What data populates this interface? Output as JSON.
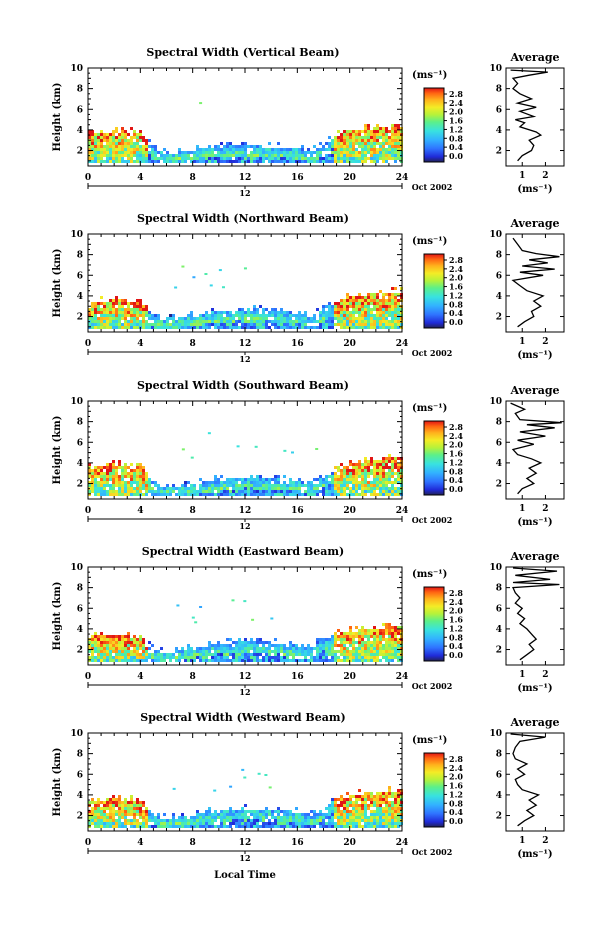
{
  "figure": {
    "time_axis_label": "Local Time",
    "height_axis_label": "Height (km)",
    "unit_label": "(ms⁻¹)",
    "date_label": "Oct 2002",
    "mid_marker_label": "12",
    "average_title": "Average"
  },
  "colorbar": {
    "ticks": [
      "0.0",
      "0.4",
      "0.8",
      "1.2",
      "1.6",
      "2.0",
      "2.4",
      "2.8"
    ],
    "colors": [
      "#222255",
      "#1f2ad8",
      "#2f73ff",
      "#32b2ff",
      "#38e2e0",
      "#5cf08a",
      "#b6f23a",
      "#f4ec26",
      "#ffb21c",
      "#ff6412",
      "#e11515"
    ]
  },
  "chart_data": [
    {
      "type": "heatmap",
      "title": "Spectral Width (Vertical Beam)",
      "xlim": [
        0,
        24
      ],
      "ylim": [
        0.5,
        10
      ],
      "x_ticks": [
        0,
        4,
        8,
        12,
        16,
        20,
        24
      ],
      "y_ticks": [
        2,
        4,
        6,
        8,
        10
      ],
      "value_range": [
        0.0,
        3.0
      ],
      "top_height_km": [
        [
          0,
          3.8
        ],
        [
          2,
          4.0
        ],
        [
          4,
          3.9
        ],
        [
          5,
          2.3
        ],
        [
          6,
          1.8
        ],
        [
          8,
          2.2
        ],
        [
          10,
          2.5
        ],
        [
          12,
          2.6
        ],
        [
          14,
          2.5
        ],
        [
          16,
          2.3
        ],
        [
          17,
          2.0
        ],
        [
          18,
          2.6
        ],
        [
          19,
          3.6
        ],
        [
          20,
          4.1
        ],
        [
          22,
          4.3
        ],
        [
          24,
          4.5
        ]
      ],
      "average": {
        "xlim": [
          0.3,
          2.8
        ],
        "x_ticks": [
          1,
          2
        ],
        "y_ticks": [
          2,
          4,
          6,
          8,
          10
        ],
        "profile": [
          [
            0.8,
            1.0
          ],
          [
            1.0,
            1.5
          ],
          [
            1.4,
            2.0
          ],
          [
            1.5,
            2.5
          ],
          [
            1.3,
            3.0
          ],
          [
            1.8,
            3.5
          ],
          [
            1.6,
            3.8
          ],
          [
            0.9,
            4.3
          ],
          [
            1.1,
            4.7
          ],
          [
            0.7,
            5.0
          ],
          [
            1.5,
            5.3
          ],
          [
            0.9,
            5.8
          ],
          [
            1.6,
            6.2
          ],
          [
            0.8,
            6.6
          ],
          [
            1.4,
            7.0
          ],
          [
            0.9,
            7.5
          ],
          [
            0.6,
            8.0
          ],
          [
            0.8,
            8.5
          ],
          [
            0.6,
            9.0
          ],
          [
            1.3,
            9.3
          ],
          [
            2.1,
            9.6
          ],
          [
            0.5,
            9.8
          ]
        ]
      }
    },
    {
      "type": "heatmap",
      "title": "Spectral Width (Northward Beam)",
      "xlim": [
        0,
        24
      ],
      "ylim": [
        0.5,
        10
      ],
      "x_ticks": [
        0,
        4,
        8,
        12,
        16,
        20,
        24
      ],
      "y_ticks": [
        2,
        4,
        6,
        8,
        10
      ],
      "value_range": [
        0.0,
        3.0
      ],
      "top_height_km": [
        [
          0,
          3.4
        ],
        [
          2,
          3.8
        ],
        [
          4,
          3.5
        ],
        [
          5,
          2.2
        ],
        [
          6,
          1.8
        ],
        [
          8,
          2.2
        ],
        [
          10,
          2.6
        ],
        [
          12,
          2.8
        ],
        [
          14,
          2.7
        ],
        [
          16,
          2.5
        ],
        [
          17,
          2.1
        ],
        [
          18,
          2.8
        ],
        [
          19,
          3.5
        ],
        [
          20,
          4.0
        ],
        [
          22,
          4.3
        ],
        [
          24,
          4.6
        ]
      ],
      "average": {
        "xlim": [
          0.3,
          2.8
        ],
        "x_ticks": [
          1,
          2
        ],
        "y_ticks": [
          2,
          4,
          6,
          8,
          10
        ],
        "profile": [
          [
            0.8,
            1.0
          ],
          [
            1.1,
            1.5
          ],
          [
            1.5,
            2.0
          ],
          [
            1.4,
            2.5
          ],
          [
            1.8,
            3.0
          ],
          [
            1.5,
            3.5
          ],
          [
            1.9,
            4.0
          ],
          [
            1.2,
            4.5
          ],
          [
            0.9,
            5.0
          ],
          [
            0.6,
            5.5
          ],
          [
            1.9,
            6.0
          ],
          [
            0.9,
            6.3
          ],
          [
            2.4,
            6.6
          ],
          [
            1.0,
            6.9
          ],
          [
            2.1,
            7.2
          ],
          [
            1.3,
            7.5
          ],
          [
            2.6,
            7.8
          ],
          [
            1.6,
            8.1
          ],
          [
            1.0,
            8.4
          ],
          [
            0.8,
            9.0
          ],
          [
            0.6,
            9.6
          ]
        ]
      }
    },
    {
      "type": "heatmap",
      "title": "Spectral Width (Southward Beam)",
      "xlim": [
        0,
        24
      ],
      "ylim": [
        0.5,
        10
      ],
      "x_ticks": [
        0,
        4,
        8,
        12,
        16,
        20,
        24
      ],
      "y_ticks": [
        2,
        4,
        6,
        8,
        10
      ],
      "value_range": [
        0.0,
        3.0
      ],
      "top_height_km": [
        [
          0,
          3.6
        ],
        [
          2,
          4.0
        ],
        [
          4,
          3.8
        ],
        [
          5,
          2.2
        ],
        [
          6,
          1.8
        ],
        [
          8,
          2.1
        ],
        [
          10,
          2.5
        ],
        [
          12,
          2.7
        ],
        [
          14,
          2.6
        ],
        [
          16,
          2.4
        ],
        [
          17,
          2.0
        ],
        [
          18,
          2.7
        ],
        [
          19,
          3.4
        ],
        [
          20,
          4.0
        ],
        [
          22,
          4.4
        ],
        [
          24,
          4.7
        ]
      ],
      "average": {
        "xlim": [
          0.3,
          2.8
        ],
        "x_ticks": [
          1,
          2
        ],
        "y_ticks": [
          2,
          4,
          6,
          8,
          10
        ],
        "profile": [
          [
            0.8,
            1.0
          ],
          [
            1.0,
            1.5
          ],
          [
            1.5,
            2.0
          ],
          [
            1.2,
            2.5
          ],
          [
            1.6,
            3.0
          ],
          [
            1.3,
            3.5
          ],
          [
            1.8,
            4.0
          ],
          [
            1.4,
            4.4
          ],
          [
            0.8,
            4.8
          ],
          [
            0.6,
            5.3
          ],
          [
            1.5,
            5.8
          ],
          [
            0.8,
            6.2
          ],
          [
            2.0,
            6.6
          ],
          [
            0.9,
            7.0
          ],
          [
            2.4,
            7.4
          ],
          [
            1.2,
            7.7
          ],
          [
            2.7,
            7.9
          ],
          [
            0.9,
            8.2
          ],
          [
            0.7,
            8.8
          ],
          [
            1.1,
            9.2
          ],
          [
            0.5,
            9.8
          ]
        ]
      }
    },
    {
      "type": "heatmap",
      "title": "Spectral Width (Eastward Beam)",
      "xlim": [
        0,
        24
      ],
      "ylim": [
        0.5,
        10
      ],
      "x_ticks": [
        0,
        4,
        8,
        12,
        16,
        20,
        24
      ],
      "y_ticks": [
        2,
        4,
        6,
        8,
        10
      ],
      "value_range": [
        0.0,
        3.0
      ],
      "top_height_km": [
        [
          0,
          3.4
        ],
        [
          2,
          3.6
        ],
        [
          4,
          3.3
        ],
        [
          5,
          2.1
        ],
        [
          6,
          1.8
        ],
        [
          8,
          2.3
        ],
        [
          10,
          2.7
        ],
        [
          12,
          2.9
        ],
        [
          14,
          2.8
        ],
        [
          16,
          2.6
        ],
        [
          17,
          2.2
        ],
        [
          18,
          3.2
        ],
        [
          19,
          3.6
        ],
        [
          20,
          3.9
        ],
        [
          22,
          4.2
        ],
        [
          24,
          4.4
        ]
      ],
      "average": {
        "xlim": [
          0.3,
          2.8
        ],
        "x_ticks": [
          1,
          2
        ],
        "y_ticks": [
          2,
          4,
          6,
          8,
          10
        ],
        "profile": [
          [
            0.9,
            1.0
          ],
          [
            1.2,
            1.5
          ],
          [
            1.5,
            2.0
          ],
          [
            1.3,
            2.5
          ],
          [
            1.6,
            3.0
          ],
          [
            1.4,
            3.5
          ],
          [
            1.2,
            4.0
          ],
          [
            0.9,
            4.5
          ],
          [
            1.1,
            5.0
          ],
          [
            0.8,
            5.5
          ],
          [
            1.0,
            6.0
          ],
          [
            0.7,
            6.5
          ],
          [
            0.9,
            7.0
          ],
          [
            0.7,
            7.5
          ],
          [
            0.6,
            8.0
          ],
          [
            2.6,
            8.3
          ],
          [
            0.6,
            8.5
          ],
          [
            2.2,
            8.8
          ],
          [
            0.7,
            9.2
          ],
          [
            2.5,
            9.6
          ],
          [
            0.6,
            9.9
          ]
        ]
      }
    },
    {
      "type": "heatmap",
      "title": "Spectral Width (Westward Beam)",
      "xlim": [
        0,
        24
      ],
      "ylim": [
        0.5,
        10
      ],
      "x_ticks": [
        0,
        4,
        8,
        12,
        16,
        20,
        24
      ],
      "y_ticks": [
        2,
        4,
        6,
        8,
        10
      ],
      "value_range": [
        0.0,
        3.0
      ],
      "top_height_km": [
        [
          0,
          3.5
        ],
        [
          2,
          3.8
        ],
        [
          4,
          3.6
        ],
        [
          5,
          2.2
        ],
        [
          6,
          1.8
        ],
        [
          8,
          2.2
        ],
        [
          10,
          2.6
        ],
        [
          12,
          2.8
        ],
        [
          14,
          2.7
        ],
        [
          16,
          2.5
        ],
        [
          17,
          2.1
        ],
        [
          18,
          2.8
        ],
        [
          19,
          3.6
        ],
        [
          20,
          4.1
        ],
        [
          22,
          4.4
        ],
        [
          24,
          4.6
        ]
      ],
      "average": {
        "xlim": [
          0.3,
          2.8
        ],
        "x_ticks": [
          1,
          2
        ],
        "y_ticks": [
          2,
          4,
          6,
          8,
          10
        ],
        "profile": [
          [
            0.8,
            1.0
          ],
          [
            1.1,
            1.5
          ],
          [
            1.5,
            2.0
          ],
          [
            1.2,
            2.5
          ],
          [
            1.6,
            3.0
          ],
          [
            1.3,
            3.5
          ],
          [
            1.7,
            4.0
          ],
          [
            1.0,
            4.5
          ],
          [
            0.8,
            5.0
          ],
          [
            0.7,
            5.5
          ],
          [
            1.1,
            6.0
          ],
          [
            0.8,
            6.5
          ],
          [
            1.2,
            7.0
          ],
          [
            0.7,
            7.5
          ],
          [
            0.6,
            8.0
          ],
          [
            0.7,
            8.6
          ],
          [
            0.9,
            9.2
          ],
          [
            2.0,
            9.6
          ],
          [
            0.5,
            9.9
          ]
        ]
      }
    }
  ]
}
